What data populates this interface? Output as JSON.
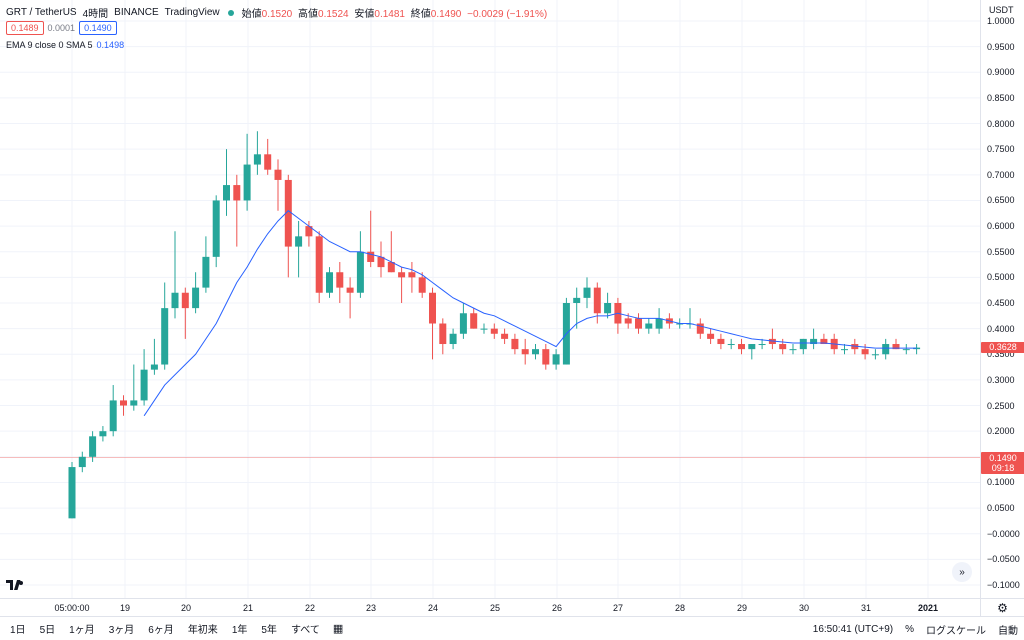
{
  "legend": {
    "symbol": "GRT / TetherUS",
    "interval": "4時間",
    "exchange": "BINANCE",
    "source": "TradingView",
    "open_label": "始値",
    "open_value": "0.1520",
    "high_label": "高値",
    "high_value": "0.1524",
    "low_label": "安値",
    "low_value": "0.1481",
    "close_label": "終値",
    "close_value": "0.1490",
    "change": "−0.0029 (−1.91%)"
  },
  "bidask": {
    "bid": "0.1489",
    "spread": "0.0001",
    "ask": "0.1490"
  },
  "ema": {
    "label": "EMA 9 close 0 SMA 5",
    "value": "0.1498"
  },
  "price_axis": {
    "currency": "USDT",
    "labels": [
      "1.0000",
      "0.9500",
      "0.9000",
      "0.8500",
      "0.8000",
      "0.7500",
      "0.7000",
      "0.6500",
      "0.6000",
      "0.5500",
      "0.5000",
      "0.4500",
      "0.4000",
      "0.3500",
      "0.3000",
      "0.2500",
      "0.2000",
      "0.1500",
      "0.1000",
      "0.0500",
      "−0.0000",
      "−0.0500",
      "−0.1000"
    ],
    "current_price": "0.3628",
    "crosshair_price": "0.1490",
    "crosshair_time": "09:18"
  },
  "time_axis": {
    "labels": [
      "05:00:00",
      "19",
      "20",
      "21",
      "22",
      "23",
      "24",
      "25",
      "26",
      "27",
      "28",
      "29",
      "30",
      "31",
      "2021"
    ]
  },
  "bottom_bar": {
    "ranges": [
      "1日",
      "5日",
      "1ヶ月",
      "3ヶ月",
      "6ヶ月",
      "年初来",
      "1年",
      "5年",
      "すべて"
    ],
    "clock": "16:50:41 (UTC+9)",
    "percent": "%",
    "log": "ログスケール",
    "auto": "自動"
  },
  "colors": {
    "up": "#26a69a",
    "down": "#ef5350",
    "ema": "#2962ff"
  },
  "chart_data": {
    "type": "candlestick",
    "ylim": [
      -0.1,
      1.0
    ],
    "candles": [
      {
        "o": 0.03,
        "h": 0.14,
        "l": 0.03,
        "c": 0.13
      },
      {
        "o": 0.13,
        "h": 0.16,
        "l": 0.12,
        "c": 0.15
      },
      {
        "o": 0.15,
        "h": 0.2,
        "l": 0.14,
        "c": 0.19
      },
      {
        "o": 0.19,
        "h": 0.21,
        "l": 0.18,
        "c": 0.2
      },
      {
        "o": 0.2,
        "h": 0.29,
        "l": 0.19,
        "c": 0.26
      },
      {
        "o": 0.26,
        "h": 0.27,
        "l": 0.23,
        "c": 0.25
      },
      {
        "o": 0.25,
        "h": 0.33,
        "l": 0.24,
        "c": 0.26
      },
      {
        "o": 0.26,
        "h": 0.36,
        "l": 0.25,
        "c": 0.32
      },
      {
        "o": 0.32,
        "h": 0.38,
        "l": 0.31,
        "c": 0.33
      },
      {
        "o": 0.33,
        "h": 0.49,
        "l": 0.32,
        "c": 0.44
      },
      {
        "o": 0.44,
        "h": 0.59,
        "l": 0.42,
        "c": 0.47
      },
      {
        "o": 0.47,
        "h": 0.48,
        "l": 0.38,
        "c": 0.44
      },
      {
        "o": 0.44,
        "h": 0.51,
        "l": 0.43,
        "c": 0.48
      },
      {
        "o": 0.48,
        "h": 0.58,
        "l": 0.47,
        "c": 0.54
      },
      {
        "o": 0.54,
        "h": 0.66,
        "l": 0.52,
        "c": 0.65
      },
      {
        "o": 0.65,
        "h": 0.75,
        "l": 0.62,
        "c": 0.68
      },
      {
        "o": 0.68,
        "h": 0.7,
        "l": 0.56,
        "c": 0.65
      },
      {
        "o": 0.65,
        "h": 0.78,
        "l": 0.63,
        "c": 0.72
      },
      {
        "o": 0.72,
        "h": 0.785,
        "l": 0.7,
        "c": 0.74
      },
      {
        "o": 0.74,
        "h": 0.77,
        "l": 0.7,
        "c": 0.71
      },
      {
        "o": 0.71,
        "h": 0.73,
        "l": 0.63,
        "c": 0.69
      },
      {
        "o": 0.69,
        "h": 0.7,
        "l": 0.5,
        "c": 0.56
      },
      {
        "o": 0.56,
        "h": 0.61,
        "l": 0.5,
        "c": 0.58
      },
      {
        "o": 0.6,
        "h": 0.61,
        "l": 0.56,
        "c": 0.58
      },
      {
        "o": 0.58,
        "h": 0.59,
        "l": 0.45,
        "c": 0.47
      },
      {
        "o": 0.47,
        "h": 0.52,
        "l": 0.46,
        "c": 0.51
      },
      {
        "o": 0.51,
        "h": 0.53,
        "l": 0.45,
        "c": 0.48
      },
      {
        "o": 0.48,
        "h": 0.5,
        "l": 0.42,
        "c": 0.47
      },
      {
        "o": 0.47,
        "h": 0.59,
        "l": 0.46,
        "c": 0.55
      },
      {
        "o": 0.55,
        "h": 0.63,
        "l": 0.52,
        "c": 0.53
      },
      {
        "o": 0.54,
        "h": 0.57,
        "l": 0.5,
        "c": 0.52
      },
      {
        "o": 0.53,
        "h": 0.59,
        "l": 0.51,
        "c": 0.51
      },
      {
        "o": 0.51,
        "h": 0.52,
        "l": 0.45,
        "c": 0.5
      },
      {
        "o": 0.51,
        "h": 0.53,
        "l": 0.47,
        "c": 0.5
      },
      {
        "o": 0.5,
        "h": 0.51,
        "l": 0.46,
        "c": 0.47
      },
      {
        "o": 0.47,
        "h": 0.48,
        "l": 0.34,
        "c": 0.41
      },
      {
        "o": 0.41,
        "h": 0.42,
        "l": 0.35,
        "c": 0.37
      },
      {
        "o": 0.37,
        "h": 0.4,
        "l": 0.36,
        "c": 0.39
      },
      {
        "o": 0.39,
        "h": 0.45,
        "l": 0.38,
        "c": 0.43
      },
      {
        "o": 0.43,
        "h": 0.44,
        "l": 0.4,
        "c": 0.4
      },
      {
        "o": 0.4,
        "h": 0.41,
        "l": 0.39,
        "c": 0.4
      },
      {
        "o": 0.4,
        "h": 0.41,
        "l": 0.38,
        "c": 0.39
      },
      {
        "o": 0.39,
        "h": 0.4,
        "l": 0.37,
        "c": 0.38
      },
      {
        "o": 0.38,
        "h": 0.39,
        "l": 0.35,
        "c": 0.36
      },
      {
        "o": 0.36,
        "h": 0.38,
        "l": 0.33,
        "c": 0.35
      },
      {
        "o": 0.35,
        "h": 0.37,
        "l": 0.34,
        "c": 0.36
      },
      {
        "o": 0.36,
        "h": 0.37,
        "l": 0.32,
        "c": 0.33
      },
      {
        "o": 0.33,
        "h": 0.36,
        "l": 0.32,
        "c": 0.35
      },
      {
        "o": 0.33,
        "h": 0.46,
        "l": 0.33,
        "c": 0.45
      },
      {
        "o": 0.45,
        "h": 0.48,
        "l": 0.4,
        "c": 0.46
      },
      {
        "o": 0.46,
        "h": 0.5,
        "l": 0.44,
        "c": 0.48
      },
      {
        "o": 0.48,
        "h": 0.49,
        "l": 0.41,
        "c": 0.43
      },
      {
        "o": 0.43,
        "h": 0.47,
        "l": 0.42,
        "c": 0.45
      },
      {
        "o": 0.45,
        "h": 0.46,
        "l": 0.39,
        "c": 0.41
      },
      {
        "o": 0.42,
        "h": 0.43,
        "l": 0.4,
        "c": 0.41
      },
      {
        "o": 0.42,
        "h": 0.43,
        "l": 0.39,
        "c": 0.4
      },
      {
        "o": 0.4,
        "h": 0.42,
        "l": 0.39,
        "c": 0.41
      },
      {
        "o": 0.4,
        "h": 0.44,
        "l": 0.39,
        "c": 0.42
      },
      {
        "o": 0.42,
        "h": 0.43,
        "l": 0.4,
        "c": 0.41
      },
      {
        "o": 0.41,
        "h": 0.42,
        "l": 0.4,
        "c": 0.41
      },
      {
        "o": 0.41,
        "h": 0.44,
        "l": 0.4,
        "c": 0.41
      },
      {
        "o": 0.41,
        "h": 0.42,
        "l": 0.38,
        "c": 0.39
      },
      {
        "o": 0.39,
        "h": 0.4,
        "l": 0.37,
        "c": 0.38
      },
      {
        "o": 0.38,
        "h": 0.39,
        "l": 0.36,
        "c": 0.37
      },
      {
        "o": 0.37,
        "h": 0.38,
        "l": 0.36,
        "c": 0.37
      },
      {
        "o": 0.37,
        "h": 0.38,
        "l": 0.35,
        "c": 0.36
      },
      {
        "o": 0.36,
        "h": 0.37,
        "l": 0.34,
        "c": 0.37
      },
      {
        "o": 0.37,
        "h": 0.38,
        "l": 0.36,
        "c": 0.37
      },
      {
        "o": 0.38,
        "h": 0.4,
        "l": 0.36,
        "c": 0.37
      },
      {
        "o": 0.37,
        "h": 0.38,
        "l": 0.35,
        "c": 0.36
      },
      {
        "o": 0.36,
        "h": 0.37,
        "l": 0.35,
        "c": 0.36
      },
      {
        "o": 0.36,
        "h": 0.38,
        "l": 0.35,
        "c": 0.38
      },
      {
        "o": 0.37,
        "h": 0.4,
        "l": 0.36,
        "c": 0.38
      },
      {
        "o": 0.38,
        "h": 0.39,
        "l": 0.37,
        "c": 0.37
      },
      {
        "o": 0.38,
        "h": 0.39,
        "l": 0.35,
        "c": 0.36
      },
      {
        "o": 0.36,
        "h": 0.37,
        "l": 0.35,
        "c": 0.36
      },
      {
        "o": 0.37,
        "h": 0.38,
        "l": 0.35,
        "c": 0.36
      },
      {
        "o": 0.36,
        "h": 0.37,
        "l": 0.34,
        "c": 0.35
      },
      {
        "o": 0.35,
        "h": 0.36,
        "l": 0.34,
        "c": 0.35
      },
      {
        "o": 0.35,
        "h": 0.38,
        "l": 0.34,
        "c": 0.37
      },
      {
        "o": 0.37,
        "h": 0.38,
        "l": 0.36,
        "c": 0.36
      },
      {
        "o": 0.36,
        "h": 0.37,
        "l": 0.35,
        "c": 0.36
      },
      {
        "o": 0.36,
        "h": 0.37,
        "l": 0.35,
        "c": 0.363
      }
    ],
    "ema": [
      null,
      null,
      null,
      null,
      null,
      null,
      null,
      0.23,
      0.26,
      0.29,
      0.31,
      0.33,
      0.35,
      0.38,
      0.41,
      0.45,
      0.49,
      0.52,
      0.555,
      0.585,
      0.61,
      0.63,
      0.615,
      0.6,
      0.585,
      0.57,
      0.56,
      0.55,
      0.55,
      0.545,
      0.54,
      0.53,
      0.52,
      0.515,
      0.505,
      0.49,
      0.475,
      0.46,
      0.45,
      0.44,
      0.43,
      0.425,
      0.415,
      0.405,
      0.395,
      0.385,
      0.375,
      0.365,
      0.39,
      0.41,
      0.42,
      0.425,
      0.425,
      0.43,
      0.425,
      0.42,
      0.42,
      0.42,
      0.415,
      0.41,
      0.41,
      0.405,
      0.4,
      0.395,
      0.39,
      0.385,
      0.38,
      0.378,
      0.376,
      0.374,
      0.372,
      0.372,
      0.372,
      0.372,
      0.37,
      0.368,
      0.366,
      0.364,
      0.362,
      0.362,
      0.362,
      0.362,
      0.362
    ]
  }
}
